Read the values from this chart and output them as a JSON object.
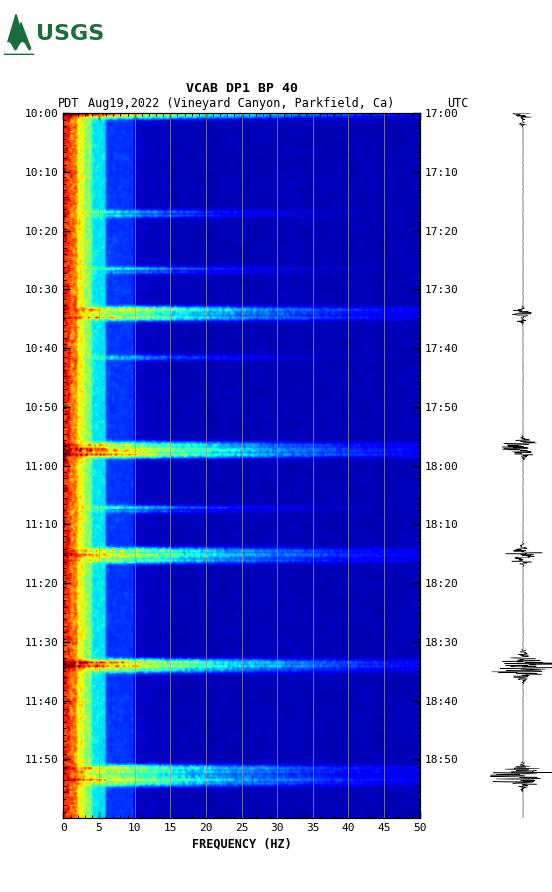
{
  "title_line1": "VCAB DP1 BP 40",
  "title_line2_pdt": "PDT",
  "title_line2_date": "Aug19,2022 (Vineyard Canyon, Parkfield, Ca)",
  "title_line2_utc": "UTC",
  "xlabel": "FREQUENCY (HZ)",
  "freq_min": 0,
  "freq_max": 50,
  "freq_ticks": [
    0,
    5,
    10,
    15,
    20,
    25,
    30,
    35,
    40,
    45,
    50
  ],
  "left_time_labels": [
    "10:00",
    "10:10",
    "10:20",
    "10:30",
    "10:40",
    "10:50",
    "11:00",
    "11:10",
    "11:20",
    "11:30",
    "11:40",
    "11:50"
  ],
  "right_time_labels": [
    "17:00",
    "17:10",
    "17:20",
    "17:30",
    "17:40",
    "17:50",
    "18:00",
    "18:10",
    "18:20",
    "18:30",
    "18:40",
    "18:50"
  ],
  "n_time_steps": 360,
  "n_freq_steps": 400,
  "background_color": "#ffffff",
  "vertical_line_color": "#a0a0a0",
  "vertical_line_freq": [
    5,
    10,
    15,
    20,
    25,
    30,
    35,
    40,
    45
  ],
  "colormap": "jet",
  "event_times_strong": [
    0.0,
    0.005,
    0.28,
    0.285,
    0.29,
    0.47,
    0.475,
    0.48,
    0.485,
    0.62,
    0.625,
    0.63,
    0.635,
    0.78,
    0.785,
    0.79,
    0.93,
    0.935,
    0.94,
    0.945,
    0.95
  ],
  "event_times_medium": [
    0.14,
    0.145,
    0.22,
    0.225,
    0.345,
    0.35,
    0.56,
    0.565
  ],
  "usgs_green": "#1a6e3c"
}
